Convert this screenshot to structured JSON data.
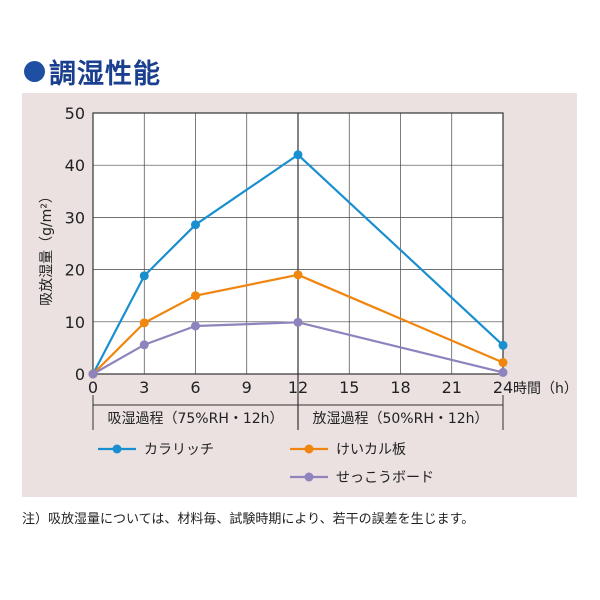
{
  "title": "調湿性能",
  "note": "注）吸放湿量については、材料毎、試験時期により、若干の誤差を生じます。",
  "chart_data": {
    "type": "line",
    "ylabel": "吸放湿量（g/m²）",
    "xlabel_unit": "時間（h）",
    "x_ticks": [
      0,
      3,
      6,
      9,
      12,
      15,
      18,
      21,
      24
    ],
    "y_ticks": [
      0,
      10,
      20,
      30,
      40,
      50
    ],
    "xlim": [
      0,
      24
    ],
    "ylim": [
      0,
      50
    ],
    "grid": true,
    "phases": [
      {
        "label": "吸湿過程（75%RH・12h）",
        "from": 0,
        "to": 12
      },
      {
        "label": "放湿過程（50%RH・12h）",
        "from": 12,
        "to": 24
      }
    ],
    "series": [
      {
        "name": "カラリッチ",
        "color": "#1a8fd0",
        "points": [
          [
            0,
            0
          ],
          [
            3,
            18.8
          ],
          [
            6,
            28.6
          ],
          [
            12,
            42
          ],
          [
            24,
            5.5
          ]
        ]
      },
      {
        "name": "けいカル板",
        "color": "#f0860f",
        "points": [
          [
            0,
            0
          ],
          [
            3,
            9.8
          ],
          [
            6,
            15
          ],
          [
            12,
            19
          ],
          [
            24,
            2.2
          ]
        ]
      },
      {
        "name": "せっこうボード",
        "color": "#8f83bd",
        "points": [
          [
            0,
            0
          ],
          [
            3,
            5.6
          ],
          [
            6,
            9.2
          ],
          [
            12,
            9.9
          ],
          [
            24,
            0.3
          ]
        ]
      }
    ]
  }
}
